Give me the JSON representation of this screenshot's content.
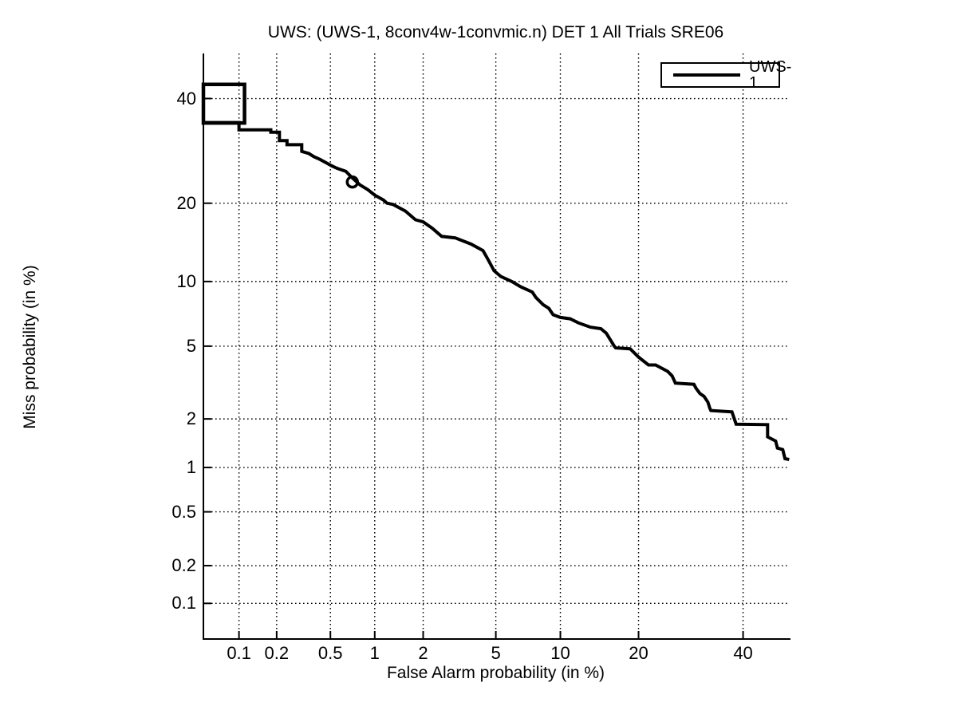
{
  "figure": {
    "background": "#ffffff",
    "foreground": "#000000"
  },
  "chart_data": {
    "type": "line",
    "subtype": "DET-curve",
    "title": "UWS: (UWS-1, 8conv4w-1convmic.n) DET 1 All Trials SRE06",
    "xlabel": "False Alarm probability (in %)",
    "ylabel": "Miss probability (in %)",
    "x_scale": "probit",
    "y_scale": "probit",
    "xlim_pct": [
      0.05,
      50
    ],
    "ylim_pct": [
      0.05,
      50
    ],
    "x_ticks_pct": [
      0.1,
      0.2,
      0.5,
      1,
      2,
      5,
      10,
      20,
      40
    ],
    "x_tick_labels": [
      "0.1",
      "0.2",
      "0.5",
      "1",
      "2",
      "5",
      "10",
      "20",
      "40"
    ],
    "y_ticks_pct": [
      0.1,
      0.2,
      0.5,
      1,
      2,
      5,
      10,
      20,
      40
    ],
    "y_tick_labels": [
      "0.1",
      "0.2",
      "0.5",
      "1",
      "2",
      "5",
      "10",
      "20",
      "40"
    ],
    "grid": "dotted",
    "grid_color": "#000000",
    "line_color": "#000000",
    "line_width": 4,
    "legend": {
      "position": "top-right",
      "entries": [
        {
          "label": "UWS-1",
          "color": "#000000"
        }
      ]
    },
    "series": [
      {
        "name": "UWS-1",
        "points_fa_miss_pct": [
          [
            0.05,
            34.9
          ],
          [
            0.1,
            34.9
          ],
          [
            0.1,
            33.4
          ],
          [
            0.18,
            33.4
          ],
          [
            0.18,
            32.9
          ],
          [
            0.21,
            32.9
          ],
          [
            0.21,
            31.2
          ],
          [
            0.24,
            31.2
          ],
          [
            0.24,
            30.4
          ],
          [
            0.31,
            30.4
          ],
          [
            0.31,
            29.1
          ],
          [
            0.35,
            28.7
          ],
          [
            0.38,
            28.1
          ],
          [
            0.42,
            27.6
          ],
          [
            0.47,
            26.9
          ],
          [
            0.51,
            26.4
          ],
          [
            0.56,
            25.9
          ],
          [
            0.64,
            25.4
          ],
          [
            0.71,
            24.2
          ],
          [
            0.8,
            23.0
          ],
          [
            0.9,
            22.2
          ],
          [
            1.0,
            21.3
          ],
          [
            1.14,
            20.5
          ],
          [
            1.2,
            20.0
          ],
          [
            1.31,
            19.8
          ],
          [
            1.56,
            18.8
          ],
          [
            1.8,
            17.5
          ],
          [
            2.0,
            17.2
          ],
          [
            2.26,
            16.3
          ],
          [
            2.56,
            15.2
          ],
          [
            3.05,
            15.0
          ],
          [
            3.72,
            14.2
          ],
          [
            4.3,
            13.4
          ],
          [
            4.55,
            12.4
          ],
          [
            4.9,
            11.1
          ],
          [
            5.3,
            10.5
          ],
          [
            6.0,
            10.0
          ],
          [
            6.6,
            9.5
          ],
          [
            7.5,
            9.0
          ],
          [
            7.8,
            8.5
          ],
          [
            8.4,
            7.9
          ],
          [
            8.9,
            7.6
          ],
          [
            9.3,
            7.1
          ],
          [
            10.0,
            6.9
          ],
          [
            11.0,
            6.8
          ],
          [
            11.9,
            6.5
          ],
          [
            13.3,
            6.2
          ],
          [
            14.6,
            6.1
          ],
          [
            15.3,
            5.8
          ],
          [
            16.4,
            5.0
          ],
          [
            16.6,
            4.9
          ],
          [
            18.7,
            4.85
          ],
          [
            20.0,
            4.4
          ],
          [
            21.6,
            4.0
          ],
          [
            22.8,
            4.0
          ],
          [
            24.9,
            3.7
          ],
          [
            25.7,
            3.5
          ],
          [
            26.3,
            3.2
          ],
          [
            29.8,
            3.15
          ],
          [
            30.2,
            3.0
          ],
          [
            31.0,
            2.8
          ],
          [
            31.8,
            2.7
          ],
          [
            32.6,
            2.5
          ],
          [
            33.0,
            2.3
          ],
          [
            33.2,
            2.24
          ],
          [
            37.6,
            2.2
          ],
          [
            38.5,
            1.86
          ],
          [
            45.4,
            1.85
          ],
          [
            45.4,
            1.56
          ],
          [
            47.2,
            1.47
          ],
          [
            47.6,
            1.33
          ],
          [
            48.8,
            1.3
          ],
          [
            49.3,
            1.14
          ],
          [
            49.9,
            1.13
          ]
        ]
      }
    ],
    "markers": {
      "circle_point": {
        "fa_pct": 0.71,
        "miss_pct": 23.5
      },
      "box_region": {
        "fa_pct_range": [
          0.05,
          0.111
        ],
        "miss_pct_range": [
          34.8,
          43.1
        ]
      }
    }
  }
}
